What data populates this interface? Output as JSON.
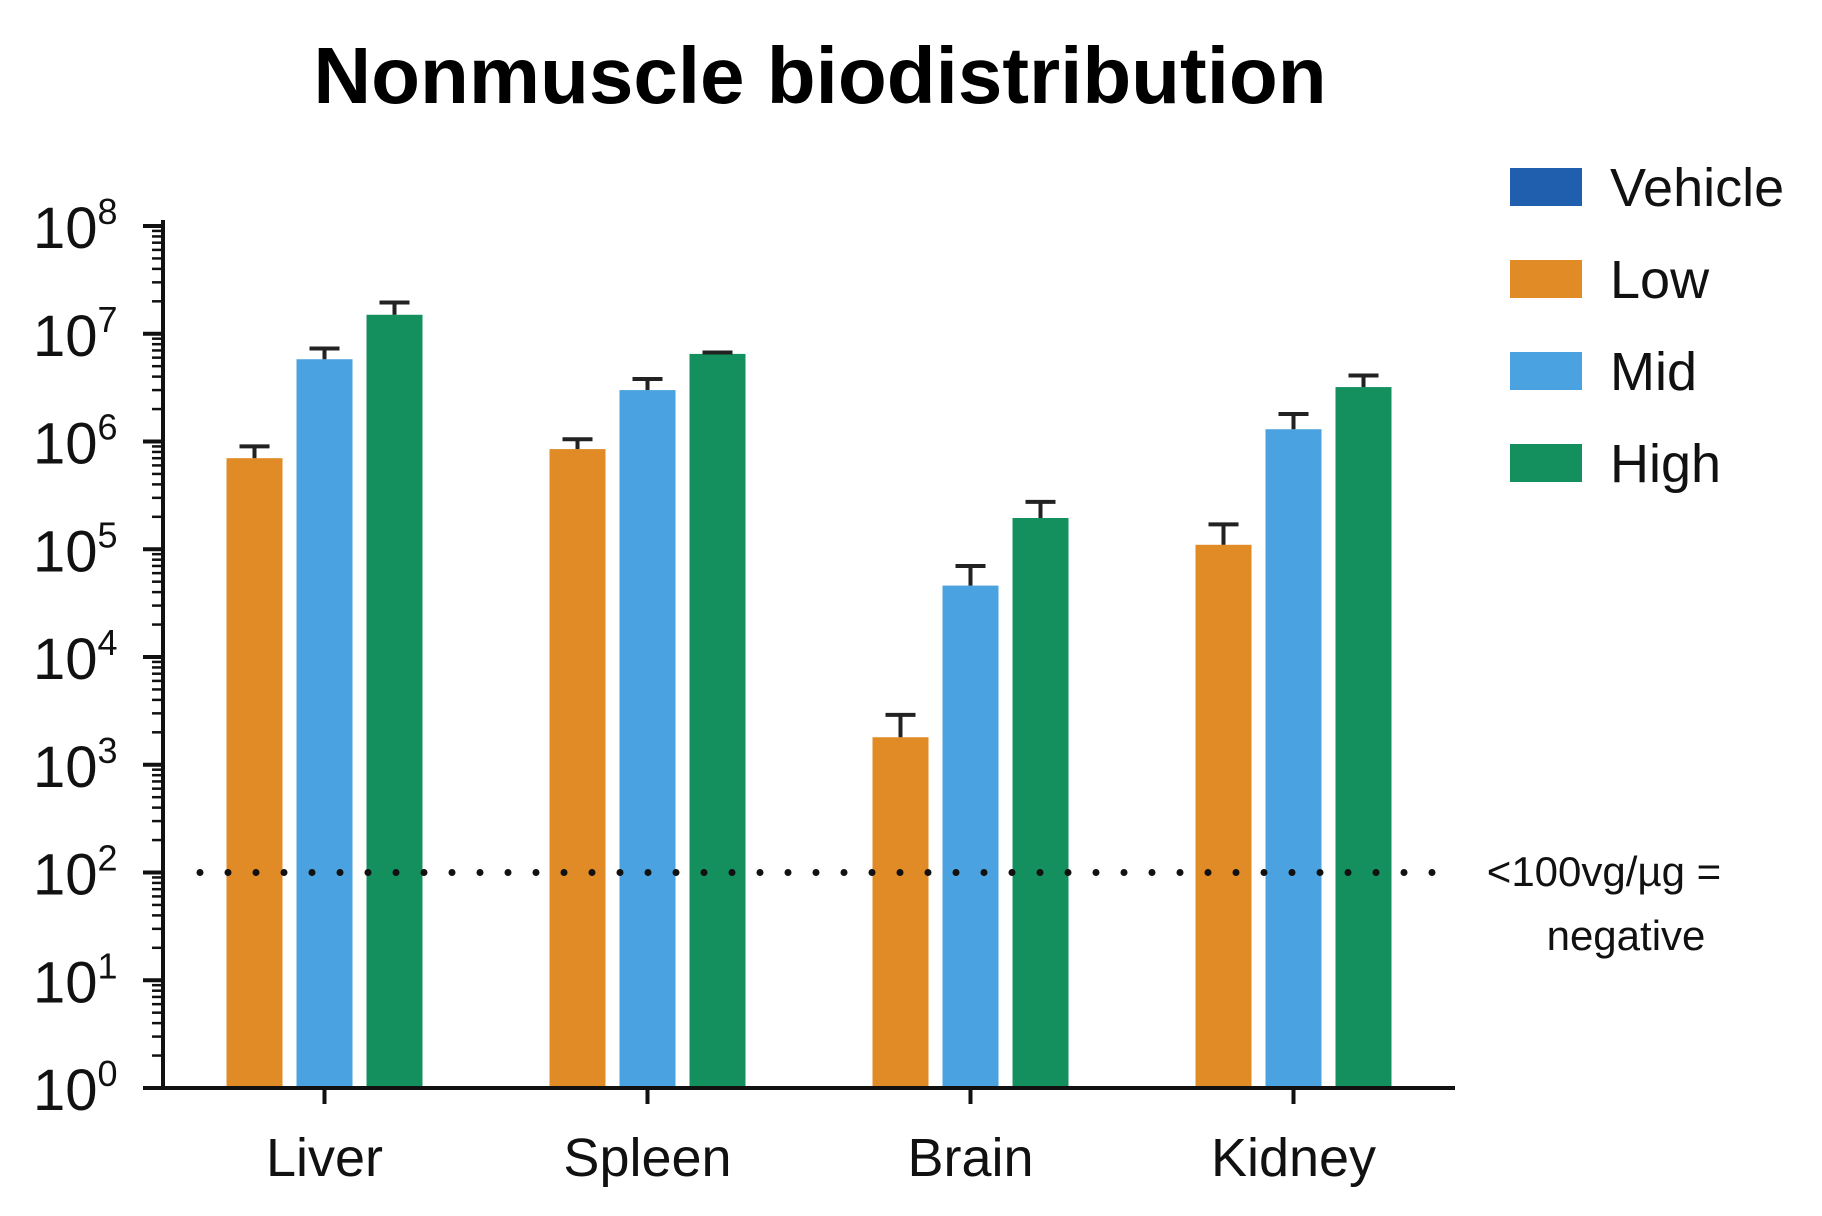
{
  "chart_data": {
    "type": "bar",
    "title": "Nonmuscle biodistribution",
    "xlabel": "",
    "ylabel": "",
    "yscale": "log",
    "ylim": [
      1,
      100000000
    ],
    "yticks": [
      {
        "base": "10",
        "exp": "0",
        "value": 1
      },
      {
        "base": "10",
        "exp": "1",
        "value": 10
      },
      {
        "base": "10",
        "exp": "2",
        "value": 100
      },
      {
        "base": "10",
        "exp": "3",
        "value": 1000
      },
      {
        "base": "10",
        "exp": "4",
        "value": 10000
      },
      {
        "base": "10",
        "exp": "5",
        "value": 100000
      },
      {
        "base": "10",
        "exp": "6",
        "value": 1000000
      },
      {
        "base": "10",
        "exp": "7",
        "value": 10000000
      },
      {
        "base": "10",
        "exp": "8",
        "value": 100000000
      }
    ],
    "categories": [
      "Liver",
      "Spleen",
      "Brain",
      "Kidney"
    ],
    "series": [
      {
        "name": "Vehicle",
        "color": "#1f5fae",
        "values": [
          null,
          null,
          null,
          null
        ],
        "errors": [
          null,
          null,
          null,
          null
        ]
      },
      {
        "name": "Low",
        "color": "#e08b25",
        "values": [
          700000,
          850000,
          1800,
          110000
        ],
        "errors": [
          900000,
          1050000,
          2900,
          170000
        ]
      },
      {
        "name": "Mid",
        "color": "#4aa3e0",
        "values": [
          5800000,
          3000000,
          46000,
          1300000
        ],
        "errors": [
          7300000,
          3800000,
          70000,
          1800000
        ]
      },
      {
        "name": "High",
        "color": "#14905f",
        "values": [
          15000000,
          6500000,
          195000,
          3200000
        ],
        "errors": [
          19500000,
          6700000,
          275000,
          4100000
        ]
      }
    ],
    "threshold": {
      "value": 100,
      "label_line1": "<100vg/µg =",
      "label_line2": "negative"
    },
    "legend": "right",
    "grid": false
  }
}
